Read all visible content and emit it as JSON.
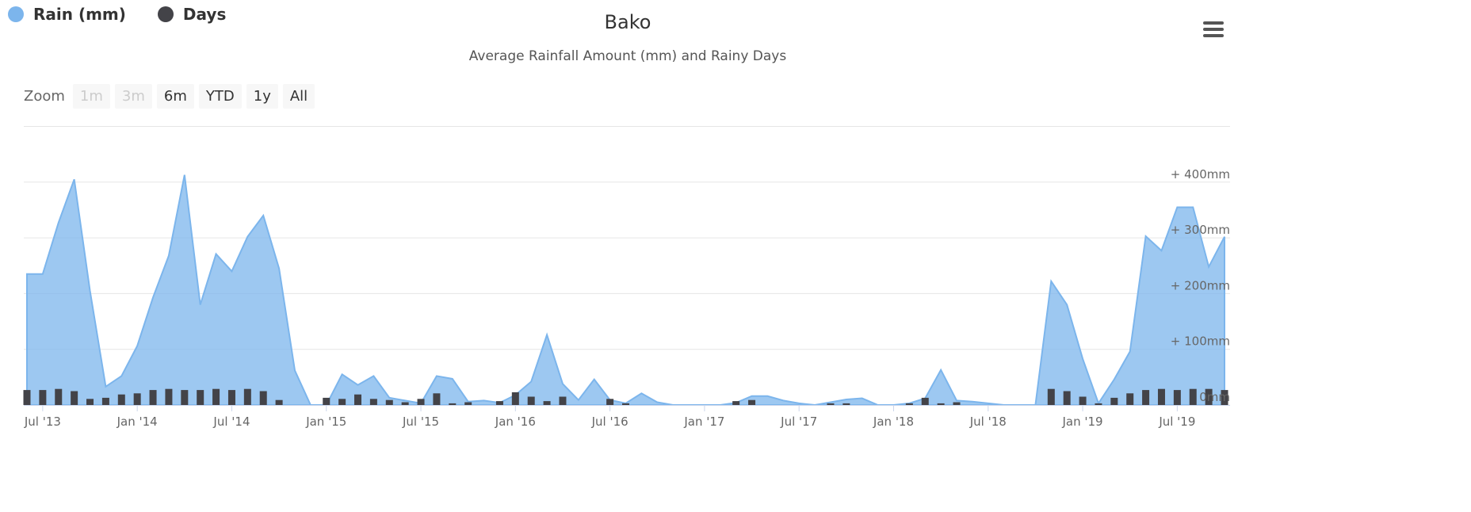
{
  "legend": [
    {
      "label": "Rain (mm)",
      "color": "#7cb5ec"
    },
    {
      "label": "Days",
      "color": "#434348"
    }
  ],
  "menu_icon": "hamburger-menu-icon",
  "zoom": {
    "label": "Zoom",
    "buttons": [
      {
        "label": "1m",
        "disabled": true
      },
      {
        "label": "3m",
        "disabled": true
      },
      {
        "label": "6m",
        "disabled": false
      },
      {
        "label": "YTD",
        "disabled": false
      },
      {
        "label": "1y",
        "disabled": false
      },
      {
        "label": "All",
        "disabled": false
      }
    ]
  },
  "chart_data": {
    "type": "area",
    "title": "Bako",
    "subtitle": "Average Rainfall Amount (mm) and Rainy Days",
    "x_start": "2013-06",
    "x_ticks": [
      "Jul '13",
      "Jan '14",
      "Jul '14",
      "Jan '15",
      "Jul '15",
      "Jan '16",
      "Jul '16",
      "Jan '17",
      "Jul '17",
      "Jan '18",
      "Jul '18",
      "Jan '19",
      "Jul '19"
    ],
    "y_ticks": [
      "0mm",
      "+ 100mm",
      "+ 200mm",
      "+ 300mm",
      "+ 400mm"
    ],
    "ylim": [
      0,
      500
    ],
    "legend_position": "top-left",
    "grid": true,
    "series": [
      {
        "name": "Rain (mm)",
        "type": "area",
        "color": "#7cb5ec",
        "values": [
          235,
          235,
          327,
          405,
          205,
          33,
          52,
          106,
          193,
          268,
          413,
          180,
          271,
          240,
          302,
          340,
          245,
          62,
          0,
          0,
          55,
          36,
          52,
          13,
          8,
          3,
          52,
          47,
          6,
          8,
          4,
          18,
          42,
          126,
          38,
          9,
          46,
          9,
          3,
          21,
          5,
          0,
          0,
          0,
          0,
          4,
          16,
          16,
          8,
          3,
          0,
          5,
          10,
          12,
          0,
          0,
          3,
          12,
          63,
          8,
          6,
          3,
          0,
          0,
          0,
          222,
          180,
          83,
          3,
          46,
          96,
          303,
          277,
          355,
          355,
          248,
          302
        ]
      },
      {
        "name": "Days",
        "type": "column",
        "color": "#434348",
        "values": [
          27,
          27,
          29,
          25,
          11,
          13,
          19,
          21,
          27,
          29,
          27,
          27,
          29,
          27,
          29,
          25,
          9,
          0,
          0,
          13,
          11,
          19,
          11,
          9,
          5,
          11,
          21,
          3,
          5,
          0,
          7,
          23,
          15,
          7,
          15,
          0,
          0,
          11,
          3,
          0,
          0,
          0,
          0,
          0,
          0,
          7,
          9,
          0,
          0,
          0,
          0,
          3,
          3,
          0,
          0,
          0,
          3,
          13,
          3,
          5,
          0,
          0,
          0,
          0,
          0,
          29,
          25,
          15,
          3,
          13,
          21,
          27,
          29,
          27,
          29,
          29,
          27
        ]
      }
    ]
  }
}
